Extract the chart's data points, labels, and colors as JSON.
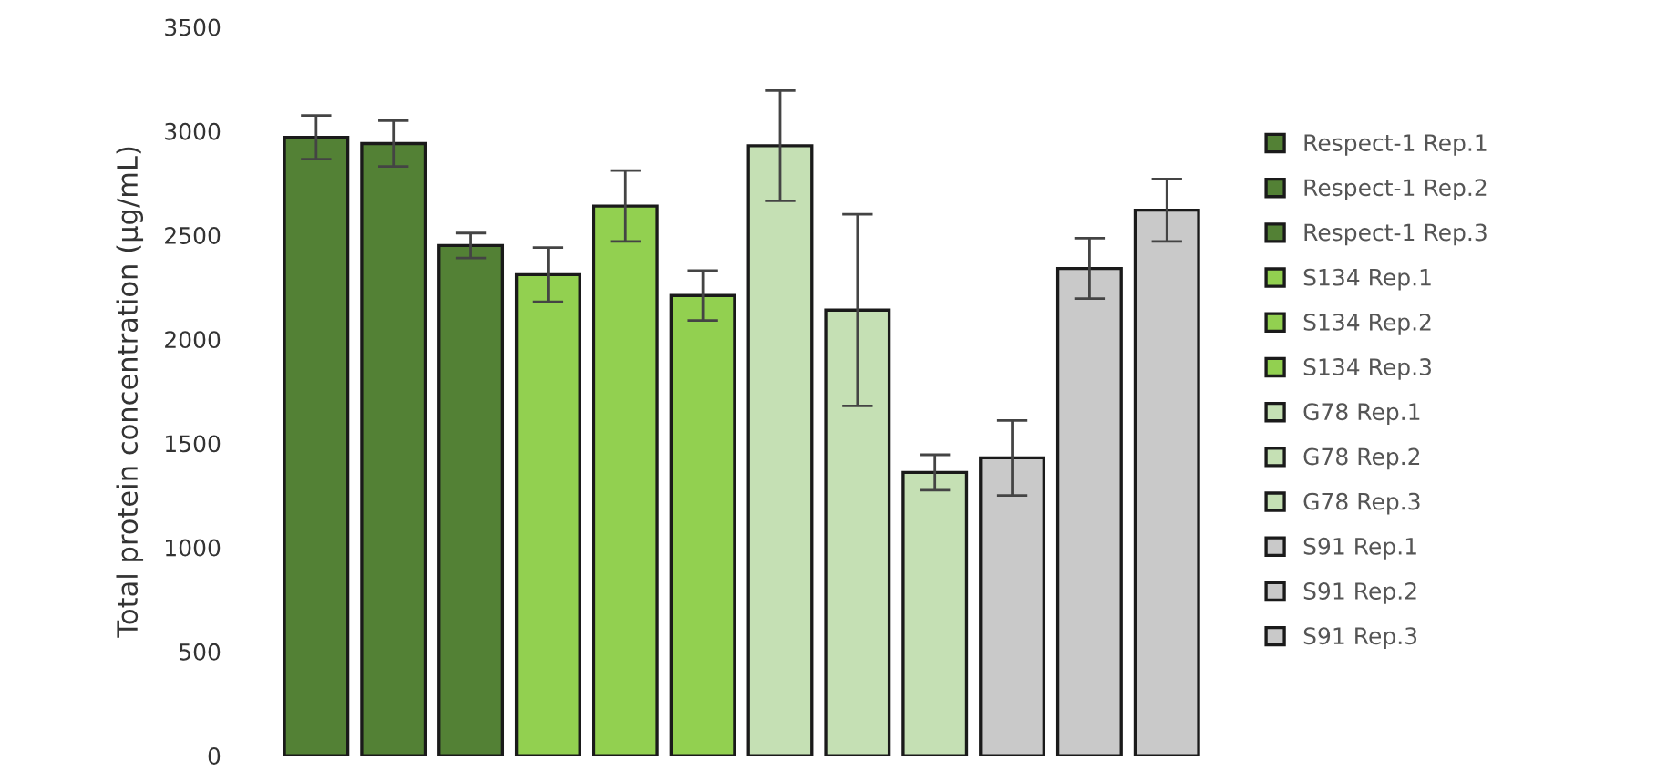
{
  "chart_data": {
    "type": "bar",
    "ylabel": "Total protein concentration (µg/mL)",
    "categories": [
      null
    ],
    "ylim": [
      0,
      3500
    ],
    "yticks": [
      0,
      500,
      1000,
      1500,
      2000,
      2500,
      3000,
      3500
    ],
    "grid": false,
    "legend": "right",
    "series": [
      {
        "name": "Respect-1 Rep.1",
        "color": "#538135",
        "values": [
          2970
        ],
        "errors": [
          105
        ]
      },
      {
        "name": "Respect-1 Rep.2",
        "color": "#538135",
        "values": [
          2940
        ],
        "errors": [
          110
        ]
      },
      {
        "name": "Respect-1 Rep.3",
        "color": "#538135",
        "values": [
          2450
        ],
        "errors": [
          60
        ]
      },
      {
        "name": "S134 Rep.1",
        "color": "#92d050",
        "values": [
          2310
        ],
        "errors": [
          130
        ]
      },
      {
        "name": "S134 Rep.2",
        "color": "#92d050",
        "values": [
          2640
        ],
        "errors": [
          170
        ]
      },
      {
        "name": "S134 Rep.3",
        "color": "#92d050",
        "values": [
          2210
        ],
        "errors": [
          120
        ]
      },
      {
        "name": "G78 Rep.1",
        "color": "#c5e0b4",
        "values": [
          2930
        ],
        "errors": [
          265
        ]
      },
      {
        "name": "G78 Rep.2",
        "color": "#c5e0b4",
        "values": [
          2140
        ],
        "errors": [
          460
        ]
      },
      {
        "name": "G78 Rep.3",
        "color": "#c5e0b4",
        "values": [
          1360
        ],
        "errors": [
          85
        ]
      },
      {
        "name": "S91 Rep.1",
        "color": "#c9c9c9",
        "values": [
          1430
        ],
        "errors": [
          180
        ]
      },
      {
        "name": "S91 Rep.2",
        "color": "#c9c9c9",
        "values": [
          2340
        ],
        "errors": [
          145
        ]
      },
      {
        "name": "S91 Rep.3",
        "color": "#c9c9c9",
        "values": [
          2620
        ],
        "errors": [
          150
        ]
      }
    ]
  }
}
